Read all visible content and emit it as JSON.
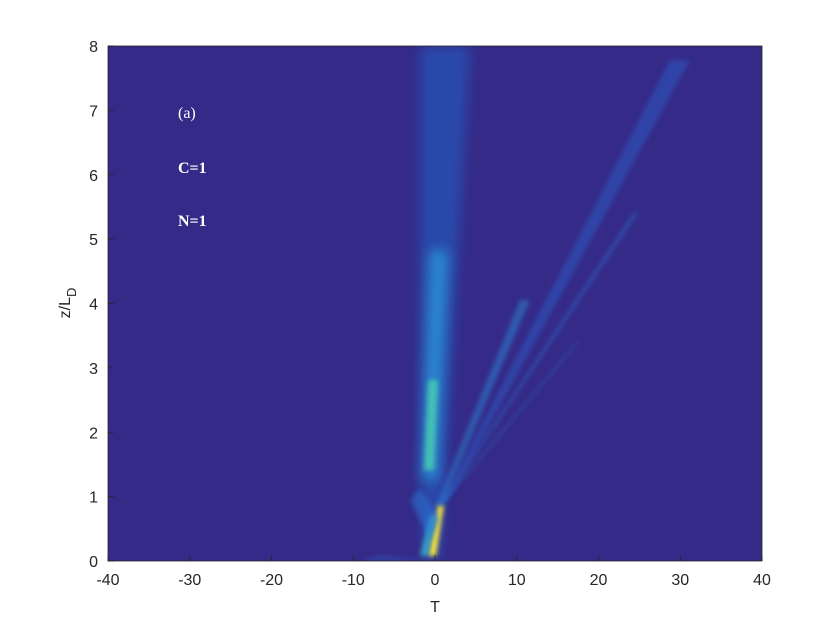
{
  "chart_data": {
    "type": "heatmap",
    "xlabel": "T",
    "ylabel": {
      "text": "z/L",
      "subscript": "D"
    },
    "annotations": [
      "(a)",
      "C=1",
      "N=1"
    ],
    "xlim": [
      -40,
      40
    ],
    "xticks": [
      -40,
      -30,
      -20,
      -10,
      0,
      10,
      20,
      30,
      40
    ],
    "ylim": [
      0,
      8
    ],
    "yticks": [
      0,
      1,
      2,
      3,
      4,
      5,
      6,
      7,
      8
    ],
    "background": "#352a87"
  }
}
